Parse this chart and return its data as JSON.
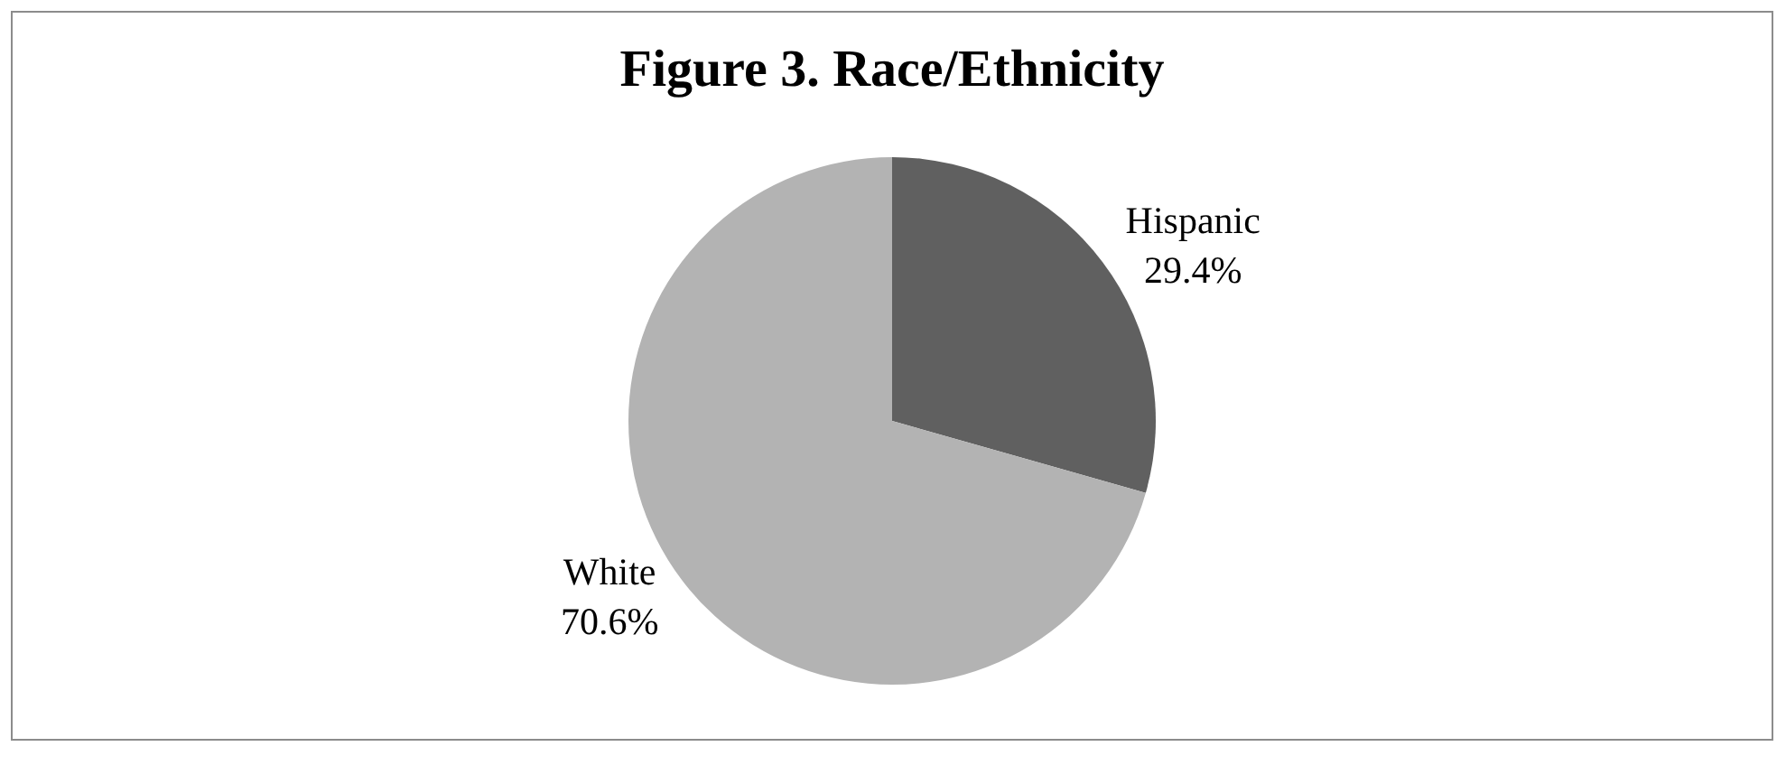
{
  "chart_data": {
    "type": "pie",
    "title": "Figure 3. Race/Ethnicity",
    "categories": [
      "Hispanic",
      "White"
    ],
    "values": [
      29.4,
      70.6
    ],
    "colors": [
      "#606060",
      "#b3b3b3"
    ],
    "value_labels": [
      "29.4%",
      "70.6%"
    ],
    "legend": false
  }
}
